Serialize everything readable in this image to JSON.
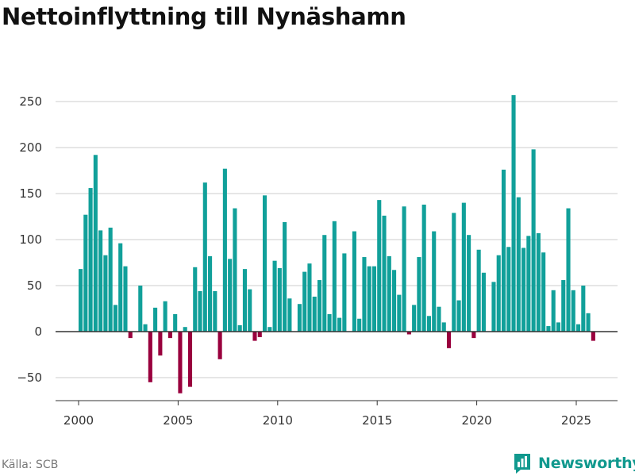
{
  "title": "Nettoinflyttning till Nynäshamn",
  "source": "Källa: SCB",
  "brand": {
    "name": "Newsworthy",
    "icon": "newsworthy-logo-icon"
  },
  "colors": {
    "positive": "#11a09a",
    "negative": "#99003d",
    "grid": "#dddddd",
    "axis": "#333333",
    "brand": "#11998e"
  },
  "chart_data": {
    "type": "bar",
    "title": "Nettoinflyttning till Nynäshamn",
    "xlabel": "",
    "ylabel": "",
    "x_ticks": [
      2000,
      2005,
      2010,
      2015,
      2020,
      2025
    ],
    "x_tick_labels": [
      "2000",
      "2005",
      "2010",
      "2015",
      "2020",
      "2025"
    ],
    "y_ticks": [
      -50,
      0,
      50,
      100,
      150,
      200,
      250
    ],
    "y_tick_labels": [
      "−50",
      "0",
      "50",
      "100",
      "150",
      "200",
      "250"
    ],
    "xlim": [
      1999.0,
      2027.0
    ],
    "ylim": [
      -77,
      265
    ],
    "grid": true,
    "frequency": "quarterly",
    "start": {
      "year": 2000,
      "quarter": 1
    },
    "series": [
      {
        "name": "Nettoinflyttning",
        "values": [
          68,
          127,
          156,
          192,
          110,
          83,
          113,
          29,
          96,
          71,
          -7,
          0,
          50,
          8,
          -55,
          26,
          -26,
          33,
          -7,
          19,
          -67,
          5,
          -60,
          70,
          44,
          162,
          82,
          44,
          -30,
          177,
          79,
          134,
          7,
          68,
          46,
          -10,
          -6,
          148,
          5,
          77,
          69,
          119,
          36,
          0,
          30,
          65,
          74,
          38,
          56,
          105,
          19,
          120,
          15,
          85,
          0,
          109,
          14,
          81,
          71,
          71,
          143,
          126,
          82,
          67,
          40,
          136,
          -3,
          29,
          81,
          138,
          17,
          109,
          27,
          10,
          -18,
          129,
          34,
          140,
          105,
          -7,
          89,
          64,
          0,
          54,
          83,
          176,
          92,
          257,
          146,
          91,
          104,
          198,
          107,
          86,
          6,
          45,
          10,
          56,
          134,
          45,
          8,
          50,
          20,
          -10
        ]
      }
    ]
  }
}
